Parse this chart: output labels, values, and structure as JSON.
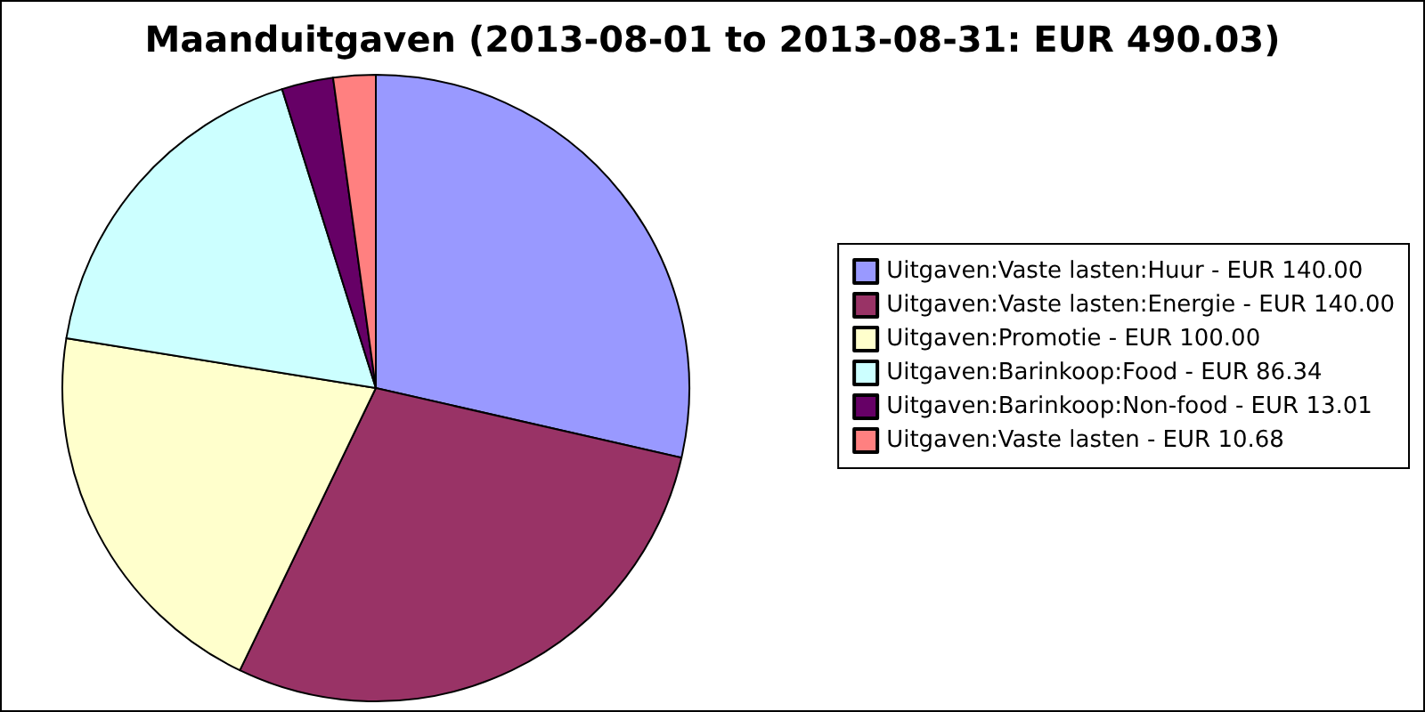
{
  "chart_data": {
    "type": "pie",
    "title": "Maanduitgaven (2013-08-01 to 2013-08-31: EUR 490.03)",
    "categories": [
      "Uitgaven:Vaste lasten:Huur - EUR 140.00",
      "Uitgaven:Vaste lasten:Energie - EUR 140.00",
      "Uitgaven:Promotie - EUR 100.00",
      "Uitgaven:Barinkoop:Food - EUR 86.34",
      "Uitgaven:Barinkoop:Non-food - EUR 13.01",
      "Uitgaven:Vaste lasten - EUR 10.68"
    ],
    "values": [
      140,
      140,
      100,
      86.34,
      13.01,
      10.68
    ],
    "colors": [
      "#9999ff",
      "#993366",
      "#ffffcc",
      "#ccffff",
      "#660066",
      "#ff8080"
    ],
    "legend": "right"
  }
}
